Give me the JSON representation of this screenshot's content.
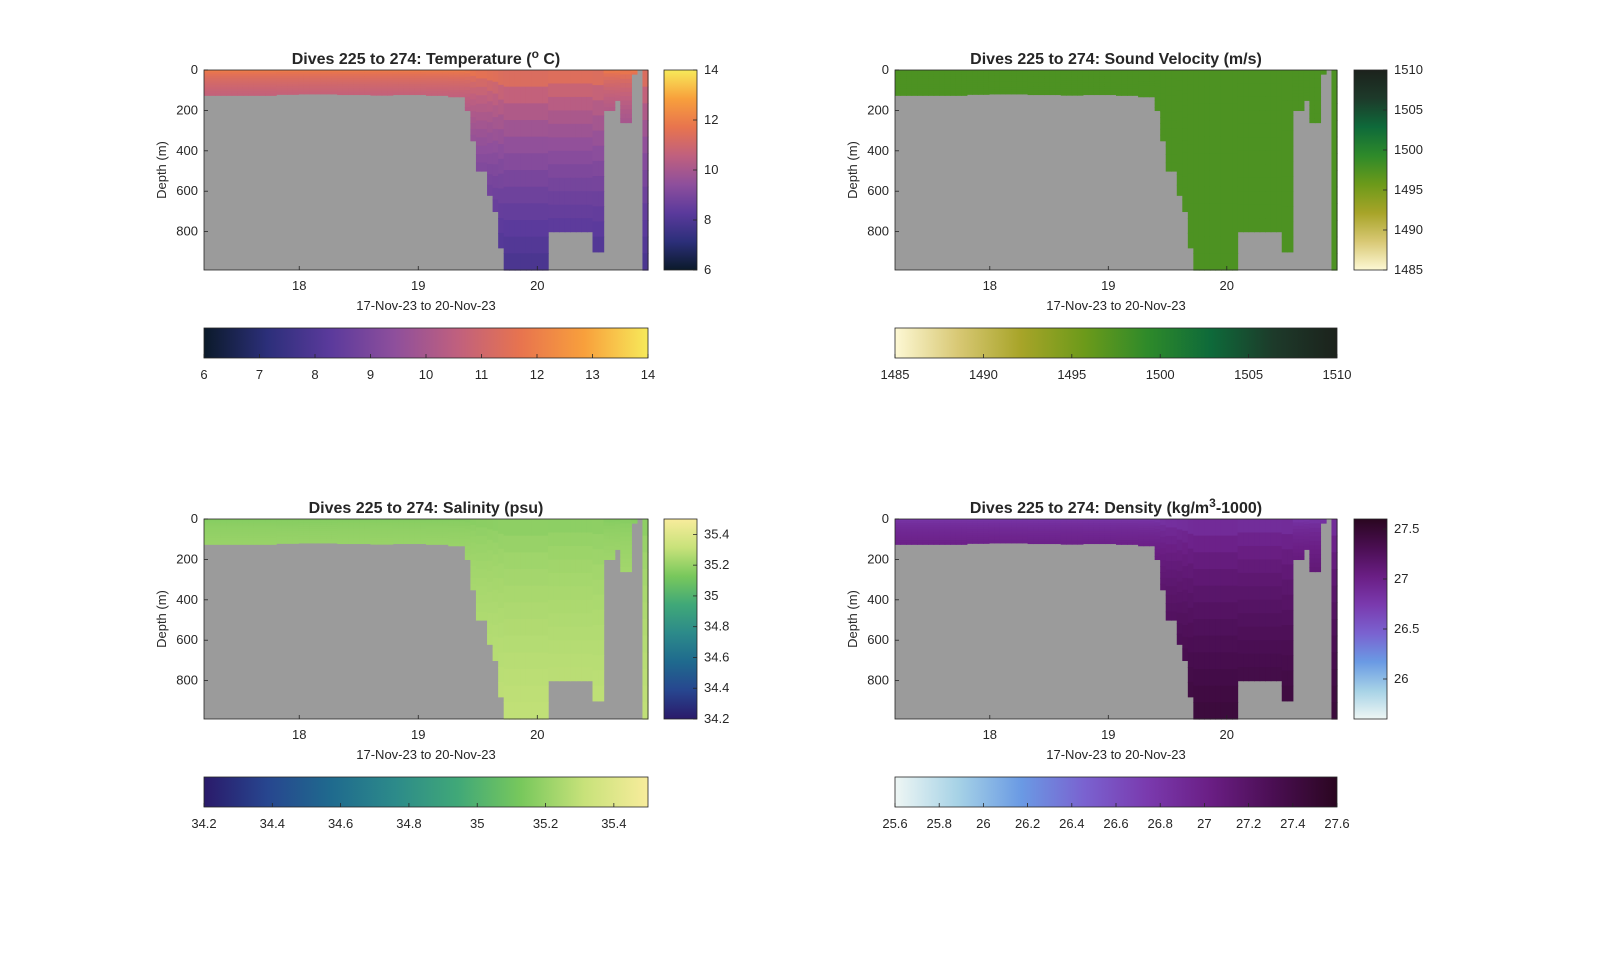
{
  "chart_data": [
    {
      "type": "heatmap",
      "title": "Dives 225 to 274: Temperature (° C)",
      "title_parts": [
        "Dives 225 to 274: Temperature (",
        "o",
        " C)"
      ],
      "xlabel": "17-Nov-23 to 20-Nov-23",
      "ylabel": "Depth (m)",
      "x_ticks": [
        "18",
        "19",
        "20"
      ],
      "x_tick_values": [
        18,
        19,
        20
      ],
      "xlim": [
        17.2,
        20.93
      ],
      "y_ticks": [
        "0",
        "200",
        "400",
        "600",
        "800"
      ],
      "y_tick_values": [
        0,
        200,
        400,
        600,
        800
      ],
      "ylim": [
        0,
        990
      ],
      "colorbar_range": [
        6,
        14
      ],
      "colorbar_ticks": [
        "6",
        "8",
        "10",
        "12",
        "14"
      ],
      "horizontal_colorbar_ticks": [
        "6",
        "7",
        "8",
        "9",
        "10",
        "11",
        "12",
        "13",
        "14"
      ],
      "colormap": [
        "#0b1a2a",
        "#2c2f7a",
        "#5b3a9c",
        "#8e4f9c",
        "#c0607e",
        "#e8744e",
        "#f8a03c",
        "#f7ea5a"
      ],
      "surface_value": 12.2,
      "deep_value": 7.8
    },
    {
      "type": "heatmap",
      "title": "Dives 225 to 274: Sound Velocity (m/s)",
      "title_parts": [
        "Dives 225 to 274: Sound Velocity (m/s)"
      ],
      "xlabel": "17-Nov-23 to 20-Nov-23",
      "ylabel": "Depth (m)",
      "x_ticks": [
        "18",
        "19",
        "20"
      ],
      "x_tick_values": [
        18,
        19,
        20
      ],
      "xlim": [
        17.2,
        20.93
      ],
      "y_ticks": [
        "0",
        "200",
        "400",
        "600",
        "800"
      ],
      "y_tick_values": [
        0,
        200,
        400,
        600,
        800
      ],
      "ylim": [
        0,
        990
      ],
      "colorbar_range": [
        1485,
        1510
      ],
      "colorbar_ticks": [
        "1485",
        "1490",
        "1495",
        "1500",
        "1505",
        "1510"
      ],
      "horizontal_colorbar_ticks": [
        "1485",
        "1490",
        "1495",
        "1500",
        "1505",
        "1510"
      ],
      "colormap": [
        "#fdf8d4",
        "#d8c874",
        "#a7a428",
        "#6c9a1a",
        "#2e8a2a",
        "#0e6a3a",
        "#1d3a2a",
        "#1c221c"
      ],
      "surface_value": 1497.5,
      "deep_value": 1497.5
    },
    {
      "type": "heatmap",
      "title": "Dives 225 to 274: Salinity (psu)",
      "title_parts": [
        "Dives 225 to 274: Salinity (psu)"
      ],
      "xlabel": "17-Nov-23 to 20-Nov-23",
      "ylabel": "Depth (m)",
      "x_ticks": [
        "18",
        "19",
        "20"
      ],
      "x_tick_values": [
        18,
        19,
        20
      ],
      "xlim": [
        17.2,
        20.93
      ],
      "y_ticks": [
        "0",
        "200",
        "400",
        "600",
        "800"
      ],
      "y_tick_values": [
        0,
        200,
        400,
        600,
        800
      ],
      "ylim": [
        0,
        990
      ],
      "colorbar_range": [
        34.2,
        35.5
      ],
      "colorbar_ticks": [
        "34.2",
        "34.4",
        "34.6",
        "34.8",
        "35",
        "35.2",
        "35.4"
      ],
      "horizontal_colorbar_ticks": [
        "34.2",
        "34.4",
        "34.6",
        "34.8",
        "35",
        "35.2",
        "35.4"
      ],
      "colormap": [
        "#2a1a6a",
        "#27468f",
        "#1f6a8e",
        "#2c8a8a",
        "#40a878",
        "#78c85c",
        "#c8e27a",
        "#f8ec9c"
      ],
      "surface_value": 35.15,
      "deep_value": 35.3
    },
    {
      "type": "heatmap",
      "title": "Dives 225 to 274: Density (kg/m³-1000)",
      "title_parts": [
        "Dives 225 to 274: Density (kg/m",
        "3",
        "-1000)"
      ],
      "xlabel": "17-Nov-23 to 20-Nov-23",
      "ylabel": "Depth (m)",
      "x_ticks": [
        "18",
        "19",
        "20"
      ],
      "x_tick_values": [
        18,
        19,
        20
      ],
      "xlim": [
        17.2,
        20.93
      ],
      "y_ticks": [
        "0",
        "200",
        "400",
        "600",
        "800"
      ],
      "y_tick_values": [
        0,
        200,
        400,
        600,
        800
      ],
      "ylim": [
        0,
        990
      ],
      "colorbar_range": [
        25.6,
        27.6
      ],
      "colorbar_ticks": [
        "26",
        "26.5",
        "27",
        "27.5"
      ],
      "colorbar_tick_values": [
        26,
        26.5,
        27,
        27.5
      ],
      "horizontal_colorbar_ticks": [
        "25.6",
        "25.8",
        "26",
        "26.2",
        "26.4",
        "26.6",
        "26.8",
        "27",
        "27.2",
        "27.4",
        "27.6"
      ],
      "colormap": [
        "#eef6f4",
        "#a6d2e6",
        "#6a9ae4",
        "#7a62d0",
        "#7a3aae",
        "#6a1e84",
        "#4a0e52",
        "#2a0620"
      ],
      "surface_value": 26.75,
      "deep_value": 27.45
    }
  ],
  "mask_color": "#9b9b9b"
}
